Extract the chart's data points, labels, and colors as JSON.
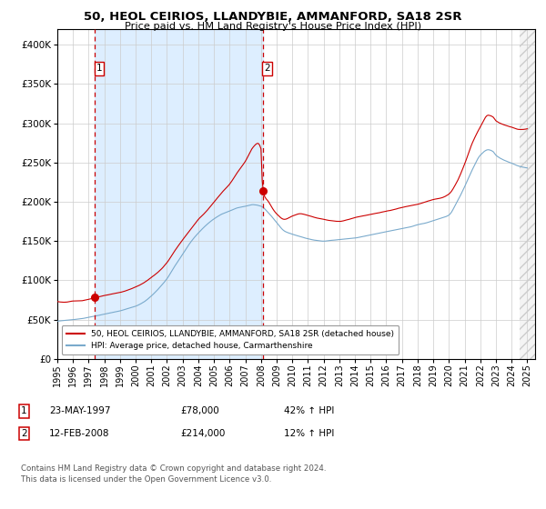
{
  "title": "50, HEOL CEIRIOS, LLANDYBIE, AMMANFORD, SA18 2SR",
  "subtitle": "Price paid vs. HM Land Registry's House Price Index (HPI)",
  "legend_line1": "50, HEOL CEIRIOS, LLANDYBIE, AMMANFORD, SA18 2SR (detached house)",
  "legend_line2": "HPI: Average price, detached house, Carmarthenshire",
  "footnote": "Contains HM Land Registry data © Crown copyright and database right 2024.\nThis data is licensed under the Open Government Licence v3.0.",
  "sale1_date": "23-MAY-1997",
  "sale1_price": "£78,000",
  "sale1_hpi": "42% ↑ HPI",
  "sale2_date": "12-FEB-2008",
  "sale2_price": "£214,000",
  "sale2_hpi": "12% ↑ HPI",
  "sale1_x": 1997.38,
  "sale1_y": 78000,
  "sale2_x": 2008.12,
  "sale2_y": 214000,
  "vline1_x": 1997.38,
  "vline2_x": 2008.12,
  "shade_xmin": 1997.38,
  "shade_xmax": 2008.12,
  "red_color": "#cc0000",
  "blue_color": "#7aaacc",
  "shade_color": "#ddeeff",
  "background_color": "#ffffff",
  "ylim": [
    0,
    420000
  ],
  "xlim_min": 1995.0,
  "xlim_max": 2025.5,
  "yticks": [
    0,
    50000,
    100000,
    150000,
    200000,
    250000,
    300000,
    350000,
    400000
  ],
  "xticks": [
    1995,
    1996,
    1997,
    1998,
    1999,
    2000,
    2001,
    2002,
    2003,
    2004,
    2005,
    2006,
    2007,
    2008,
    2009,
    2010,
    2011,
    2012,
    2013,
    2014,
    2015,
    2016,
    2017,
    2018,
    2019,
    2020,
    2021,
    2022,
    2023,
    2024,
    2025
  ]
}
